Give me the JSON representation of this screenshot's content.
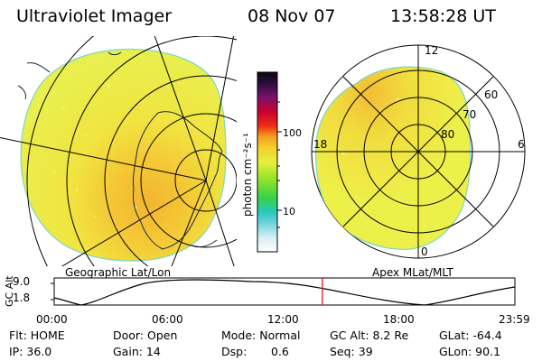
{
  "header": {
    "title": "Ultraviolet Imager",
    "date": "08 Nov 07",
    "time": "13:58:28 UT"
  },
  "colorbar": {
    "unit_label": "photon cm⁻²s⁻¹",
    "tick_100": "100",
    "tick_10": "10"
  },
  "left_map": {
    "caption": "Geographic Lat/Lon"
  },
  "right_map": {
    "caption": "Apex MLat/MLT",
    "mlt_12": "12",
    "mlt_18": "18",
    "mlt_6": "6",
    "mlt_0": "0",
    "lat_60": "60",
    "lat_70": "70",
    "lat_80": "80"
  },
  "altitude_plot": {
    "axis_label": "GC Alt",
    "y_max": "9.0",
    "y_min": "1.8",
    "x_ticks": [
      "00:00",
      "06:00",
      "12:00",
      "18:00",
      "23:59"
    ],
    "current_time_fraction": 0.582
  },
  "status": {
    "flt": "Flt: HOME",
    "ip": "IP: 36.0",
    "door": "Door: Open",
    "gain": "Gain: 14",
    "mode": "Mode: Normal",
    "dsp_label": "Dsp:",
    "dsp_value": "0.6",
    "gc_alt": "GC Alt: 8.2 Re",
    "seq": "Seq: 39",
    "glat": "GLat: -64.4",
    "glon": "GLon: 90.1"
  },
  "colors": {
    "background": "#ffffff",
    "fill_yellow": "#eef04a",
    "fill_bright": "#f6df38",
    "fill_orange": "#f2b531",
    "cursor_red": "#e8221b"
  }
}
